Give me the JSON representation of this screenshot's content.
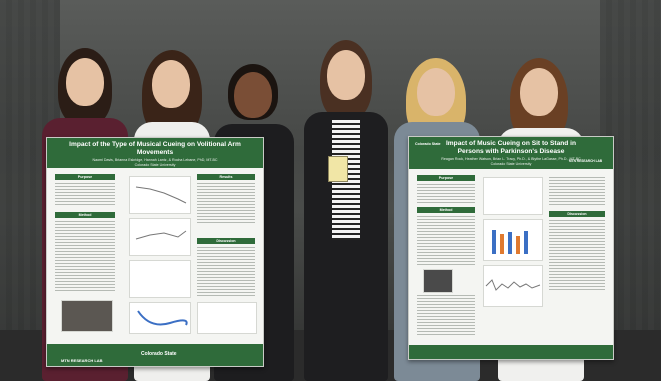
{
  "photo": {
    "description_tag": "Six presenters standing with two research posters"
  },
  "posters": [
    {
      "title": "Impact of the Type of Musical Cueing on Volitional Arm Movements",
      "authors": "Naomi Davis, Brianna Eskridge, Hannah Lantz, & Rocha Lebane, PhD, MT-BC",
      "university": "Colorado State University",
      "sections": [
        "Purpose",
        "Results",
        "Method",
        "Discussion"
      ],
      "footer_logo": "MTN RESEARCH LAB",
      "footer_brand": "Colorado State"
    },
    {
      "title": "Impact of Music Cueing on Sit to Stand in Persons with Parkinson's Disease",
      "authors": "Reagan Rock, Heather Watson, Brian L. Tracy, Ph.D., & Blythe LaGasse, Ph.D., MT-BC",
      "university": "Colorado State University",
      "sections": [
        "Purpose",
        "Method",
        "Discussion"
      ],
      "header_logo": "MTN RESEARCH LAB",
      "header_brand": "Colorado State"
    }
  ],
  "colors": {
    "poster_green": "#2f6b3a",
    "wall": "#4a4c4a"
  }
}
